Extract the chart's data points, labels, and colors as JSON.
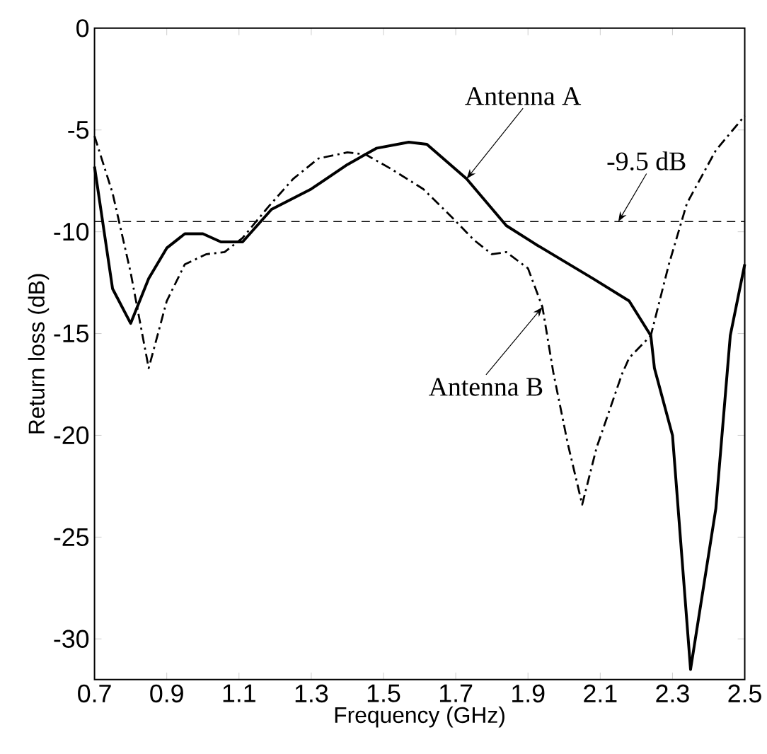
{
  "chart_data": {
    "type": "line",
    "xlabel": "Frequency (GHz)",
    "ylabel": "Return loss (dB)",
    "xlim": [
      0.7,
      2.5
    ],
    "xticks": [
      0.7,
      0.9,
      1.1,
      1.3,
      1.5,
      1.7,
      1.9,
      2.1,
      2.3,
      2.5
    ],
    "ylim": [
      -32,
      0
    ],
    "yticks": [
      -30,
      -25,
      -20,
      -15,
      -10,
      -5,
      0
    ],
    "grid": false,
    "marker": "none",
    "series": [
      {
        "color": "#000000",
        "line_style": "solid",
        "x": [
          0.7,
          0.75,
          0.8,
          0.85,
          0.9,
          0.95,
          1.0,
          1.05,
          1.11,
          1.19,
          1.3,
          1.4,
          1.48,
          1.57,
          1.62,
          1.73,
          1.84,
          1.92,
          2.08,
          2.18,
          2.24,
          2.25,
          2.3,
          2.35,
          2.42,
          2.46,
          2.5
        ],
        "values": [
          -6.8,
          -12.8,
          -14.5,
          -12.3,
          -10.8,
          -10.1,
          -10.1,
          -10.5,
          -10.5,
          -8.9,
          -7.9,
          -6.7,
          -5.9,
          -5.6,
          -5.7,
          -7.4,
          -9.7,
          -10.6,
          -12.3,
          -13.4,
          -15.1,
          -16.7,
          -20,
          -31.5,
          -23.6,
          -15.1,
          -11.6
        ]
      },
      {
        "color": "#000000",
        "line_style": "dashdot",
        "x": [
          0.7,
          0.75,
          0.8,
          0.85,
          0.9,
          0.95,
          1.01,
          1.06,
          1.11,
          1.18,
          1.25,
          1.32,
          1.4,
          1.45,
          1.52,
          1.61,
          1.69,
          1.75,
          1.8,
          1.84,
          1.9,
          1.94,
          1.97,
          2.01,
          2.05,
          2.09,
          2.16,
          2.18,
          2.24,
          2.29,
          2.34,
          2.42,
          2.5
        ],
        "values": [
          -5.3,
          -8.1,
          -12.0,
          -16.7,
          -13.4,
          -11.6,
          -11.1,
          -11.0,
          -10.3,
          -8.8,
          -7.4,
          -6.4,
          -6.1,
          -6.2,
          -6.9,
          -7.9,
          -9.3,
          -10.4,
          -11.1,
          -11.0,
          -11.8,
          -13.7,
          -16.9,
          -20.4,
          -23.4,
          -20.6,
          -17.0,
          -16.2,
          -15.1,
          -11.6,
          -8.6,
          -6.0,
          -4.3
        ]
      }
    ],
    "ref_lines": [
      {
        "axis": "y",
        "value": -9.5,
        "label": "-9.5 dB",
        "line_style": "dashed",
        "color": "#000000"
      }
    ],
    "annotations": [
      {
        "text": "Antenna A",
        "x": 1.73,
        "y": -7.4
      },
      {
        "text": "Antenna B",
        "x": 1.94,
        "y": -13.7
      }
    ]
  }
}
